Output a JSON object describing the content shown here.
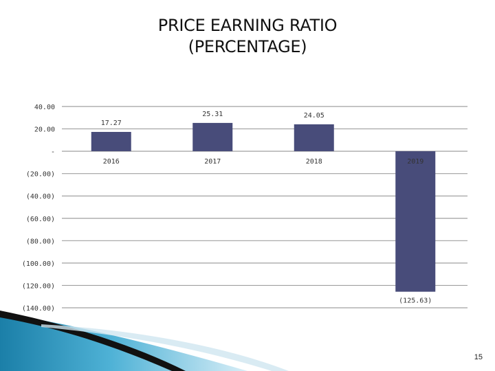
{
  "title": {
    "line1": "PRICE EARNING RATIO",
    "line2": "(PERCENTAGE)"
  },
  "page_number": "15",
  "colors": {
    "bar": "#484c7a",
    "grid": "#a0a0a0",
    "text": "#333333"
  },
  "chart_data": {
    "type": "bar",
    "title": "PRICE EARNING RATIO (PERCENTAGE)",
    "categories": [
      "2016",
      "2017",
      "2018",
      "2019"
    ],
    "values": [
      17.27,
      25.31,
      24.05,
      -125.63
    ],
    "data_labels": [
      "17.27",
      "25.31",
      "24.05",
      "(125.63)"
    ],
    "ylim": [
      -140,
      40
    ],
    "y_ticks": [
      40,
      20,
      0,
      -20,
      -40,
      -60,
      -80,
      -100,
      -120,
      -140
    ],
    "y_tick_labels": [
      "40.00",
      "20.00",
      "-",
      "(20.00)",
      "(40.00)",
      "(60.00)",
      "(80.00)",
      "(100.00)",
      "(120.00)",
      "(140.00)"
    ],
    "xlabel": "",
    "ylabel": "",
    "grid": true,
    "legend": "none"
  }
}
